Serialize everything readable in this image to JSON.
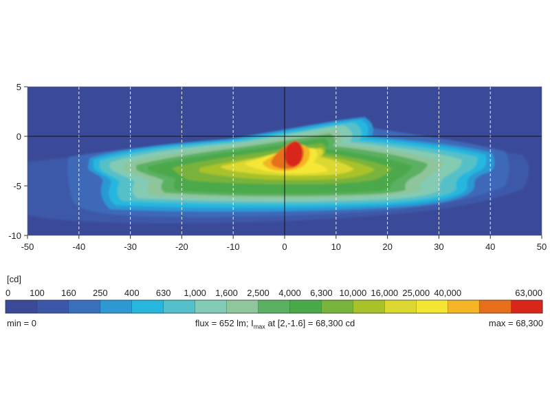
{
  "chart_data": {
    "type": "heatmap",
    "xlim": [
      -50,
      50
    ],
    "ylim": [
      -10,
      5
    ],
    "x_ticks": [
      "-50",
      "-40",
      "-30",
      "-20",
      "-10",
      "0",
      "10",
      "20",
      "30",
      "40",
      "50"
    ],
    "y_ticks": [
      "5",
      "0",
      "-5",
      "-10"
    ],
    "grid": "dashed white vertical lines every 10; solid black lines at x=0 and y=0",
    "peak": {
      "x": 2,
      "y": -1.6,
      "value": 68300
    },
    "colorbar": {
      "unit_label": "[cd]",
      "levels": [
        "0",
        "100",
        "160",
        "250",
        "400",
        "630",
        "1,000",
        "1,600",
        "2,500",
        "4,000",
        "6,300",
        "10,000",
        "16,000",
        "25,000",
        "40,000",
        "63,000"
      ],
      "colors": [
        "#3a4a98",
        "#3c57a8",
        "#3a6fbc",
        "#2c98d4",
        "#27b7de",
        "#55c0cb",
        "#82cbb6",
        "#8fc69c",
        "#5cb062",
        "#4aaa4a",
        "#78b33b",
        "#a8c22a",
        "#dcd832",
        "#f6e634",
        "#f5b524",
        "#e76f1c",
        "#d8261a"
      ]
    }
  },
  "info": {
    "min_text": "min = 0",
    "flux_prefix": "flux = 652 lm; I",
    "flux_sub": "max",
    "flux_suffix": " at [2,-1.6] = 68,300 cd",
    "max_text": "max = 68,300"
  }
}
